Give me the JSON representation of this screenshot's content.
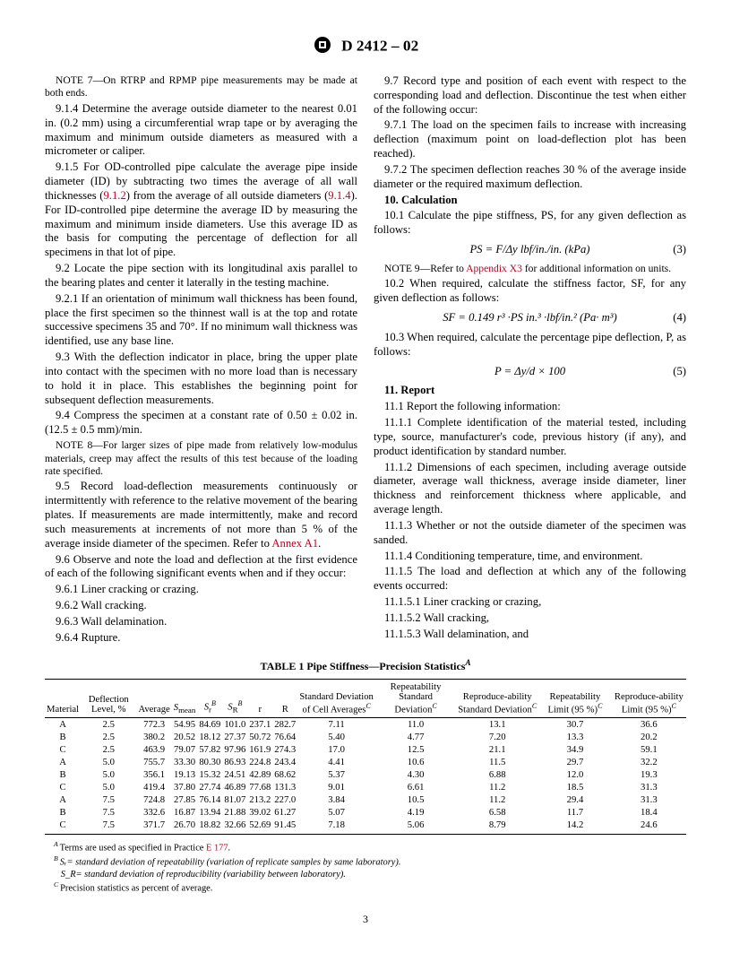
{
  "header": {
    "designation": "D 2412 – 02"
  },
  "col_left": {
    "note7": "NOTE 7—On RTRP and RPMP pipe measurements may be made at both ends.",
    "p914": "9.1.4 Determine the average outside diameter to the nearest 0.01 in. (0.2 mm) using a circumferential wrap tape or by averaging the maximum and minimum outside diameters as measured with a micrometer or caliper.",
    "p915a": "9.1.5 For OD-controlled pipe calculate the average pipe inside diameter (ID) by subtracting two times the average of all wall thicknesses (",
    "ref912": "9.1.2",
    "p915b": ") from the average of all outside diameters (",
    "ref914": "9.1.4",
    "p915c": "). For ID-controlled pipe determine the average ID by measuring the maximum and minimum inside diameters. Use this average ID as the basis for computing the percentage of deflection for all specimens in that lot of pipe.",
    "p92": "9.2 Locate the pipe section with its longitudinal axis parallel to the bearing plates and center it laterally in the testing machine.",
    "p921": "9.2.1 If an orientation of minimum wall thickness has been found, place the first specimen so the thinnest wall is at the top and rotate successive specimens 35 and 70°. If no minimum wall thickness was identified, use any base line.",
    "p93": "9.3 With the deflection indicator in place, bring the upper plate into contact with the specimen with no more load than is necessary to hold it in place. This establishes the beginning point for subsequent deflection measurements.",
    "p94": "9.4 Compress the specimen at a constant rate of 0.50 ± 0.02 in. (12.5 ± 0.5 mm)/min.",
    "note8": "NOTE 8—For larger sizes of pipe made from relatively low-modulus materials, creep may affect the results of this test because of the loading rate specified.",
    "p95a": "9.5 Record load-deflection measurements continuously or intermittently with reference to the relative movement of the bearing plates. If measurements are made intermittently, make and record such measurements at increments of not more than 5 % of the average inside diameter of the specimen. Refer to ",
    "refA1": "Annex A1",
    "p95b": ".",
    "p96": "9.6 Observe and note the load and deflection at the first evidence of each of the following significant events when and if they occur:",
    "p961": "9.6.1 Liner cracking or crazing.",
    "p962": "9.6.2 Wall cracking.",
    "p963": "9.6.3 Wall delamination.",
    "p964": "9.6.4 Rupture."
  },
  "col_right": {
    "p97": "9.7 Record type and position of each event with respect to the corresponding load and deflection. Discontinue the test when either of the following occur:",
    "p971": "9.7.1 The load on the specimen fails to increase with increasing deflection (maximum point on load-deflection plot has been reached).",
    "p972": "9.7.2 The specimen deflection reaches 30 % of the average inside diameter or the required maximum deflection.",
    "s10": "10. Calculation",
    "p101": "10.1 Calculate the pipe stiffness, PS, for any given deflection as follows:",
    "eq3": "PS = F/Δy      lbf/in./in. (kPa)",
    "eq3n": "(3)",
    "note9a": "NOTE 9—Refer to ",
    "refX3": "Appendix X3",
    "note9b": " for additional information on units.",
    "p102": "10.2 When required, calculate the stiffness factor, SF, for any given deflection as follows:",
    "eq4": "SF = 0.149 r³ ·PS      in.³ ·lbf/in.² (Pa· m³)",
    "eq4n": "(4)",
    "p103": "10.3 When required, calculate the percentage pipe deflection, P, as follows:",
    "eq5": "P = Δy/d × 100",
    "eq5n": "(5)",
    "s11": "11. Report",
    "p111": "11.1 Report the following information:",
    "p1111": "11.1.1 Complete identification of the material tested, including type, source, manufacturer's code, previous history (if any), and product identification by standard number.",
    "p1112": "11.1.2 Dimensions of each specimen, including average outside diameter, average wall thickness, average inside diameter, liner thickness and reinforcement thickness where applicable, and average length.",
    "p1113": "11.1.3 Whether or not the outside diameter of the specimen was sanded.",
    "p1114": "11.1.4 Conditioning temperature, time, and environment.",
    "p1115": "11.1.5 The load and deflection at which any of the following events occurred:",
    "p11151": "11.1.5.1 Liner cracking or crazing,",
    "p11152": "11.1.5.2 Wall cracking,",
    "p11153": "11.1.5.3 Wall delamination, and"
  },
  "table": {
    "title": "TABLE 1   Pipe Stiffness—Precision Statistics",
    "title_sup": "A",
    "cols": [
      "Material",
      "Deflection Level, %",
      "Average",
      "Sₘₑₐₙ",
      "Sᵣ",
      "S_R",
      "r",
      "R",
      "Standard Deviation of Cell Averages",
      "Repeatability Standard Deviation",
      "Reproduce-ability Standard Deviation",
      "Repeatability Limit (95 %)",
      "Reproduce-ability Limit (95 %)"
    ],
    "sup_cols": {
      "4": "B",
      "5": "B",
      "8": "C",
      "9": "C",
      "10": "C",
      "11": "C",
      "12": "C"
    },
    "rows": [
      [
        "A",
        "2.5",
        "772.3",
        "54.95",
        "84.69",
        "101.0",
        "237.1",
        "282.7",
        "7.11",
        "11.0",
        "13.1",
        "30.7",
        "36.6"
      ],
      [
        "B",
        "2.5",
        "380.2",
        "20.52",
        "18.12",
        "27.37",
        "50.72",
        "76.64",
        "5.40",
        "4.77",
        "7.20",
        "13.3",
        "20.2"
      ],
      [
        "C",
        "2.5",
        "463.9",
        "79.07",
        "57.82",
        "97.96",
        "161.9",
        "274.3",
        "17.0",
        "12.5",
        "21.1",
        "34.9",
        "59.1"
      ],
      [
        "A",
        "5.0",
        "755.7",
        "33.30",
        "80.30",
        "86.93",
        "224.8",
        "243.4",
        "4.41",
        "10.6",
        "11.5",
        "29.7",
        "32.2"
      ],
      [
        "B",
        "5.0",
        "356.1",
        "19.13",
        "15.32",
        "24.51",
        "42.89",
        "68.62",
        "5.37",
        "4.30",
        "6.88",
        "12.0",
        "19.3"
      ],
      [
        "C",
        "5.0",
        "419.4",
        "37.80",
        "27.74",
        "46.89",
        "77.68",
        "131.3",
        "9.01",
        "6.61",
        "11.2",
        "18.5",
        "31.3"
      ],
      [
        "A",
        "7.5",
        "724.8",
        "27.85",
        "76.14",
        "81.07",
        "213.2",
        "227.0",
        "3.84",
        "10.5",
        "11.2",
        "29.4",
        "31.3"
      ],
      [
        "B",
        "7.5",
        "332.6",
        "16.87",
        "13.94",
        "21.88",
        "39.02",
        "61.27",
        "5.07",
        "4.19",
        "6.58",
        "11.7",
        "18.4"
      ],
      [
        "C",
        "7.5",
        "371.7",
        "26.70",
        "18.82",
        "32.66",
        "52.69",
        "91.45",
        "7.18",
        "5.06",
        "8.79",
        "14.2",
        "24.6"
      ]
    ]
  },
  "footnotes": {
    "fA_a": "Terms are used as specified in Practice ",
    "fA_ref": "E 177",
    "fA_b": ".",
    "fB": "Sᵣ= standard deviation of repeatability (variation of replicate samples by same laboratory).",
    "fB2": "S_R= standard deviation of reproducibility (variability between laboratory).",
    "fC": "Precision statistics as percent of average."
  },
  "page": "3"
}
